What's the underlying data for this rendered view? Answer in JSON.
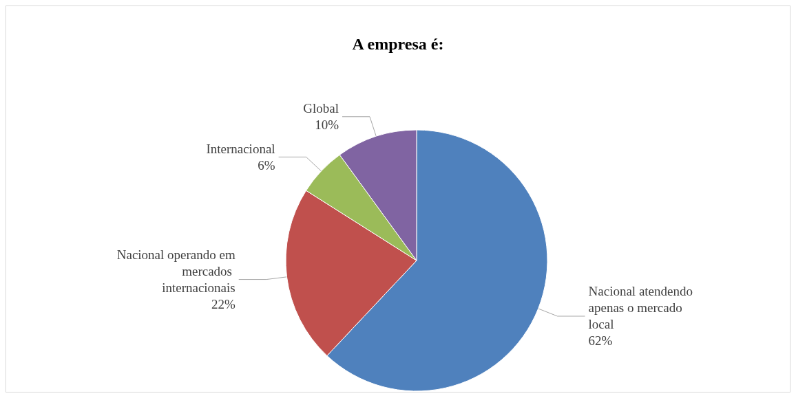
{
  "chart_data": {
    "type": "pie",
    "title": "A empresa é:",
    "categories": [
      "Nacional atendendo apenas o mercado local",
      "Nacional operando em mercados internacionais",
      "Internacional",
      "Global"
    ],
    "values": [
      62,
      22,
      6,
      10
    ],
    "value_labels": [
      "62%",
      "22%",
      "6%",
      "10%"
    ],
    "colors": [
      "#4f81bd",
      "#c0504d",
      "#9bbb59",
      "#8064a2"
    ],
    "legend": false
  }
}
